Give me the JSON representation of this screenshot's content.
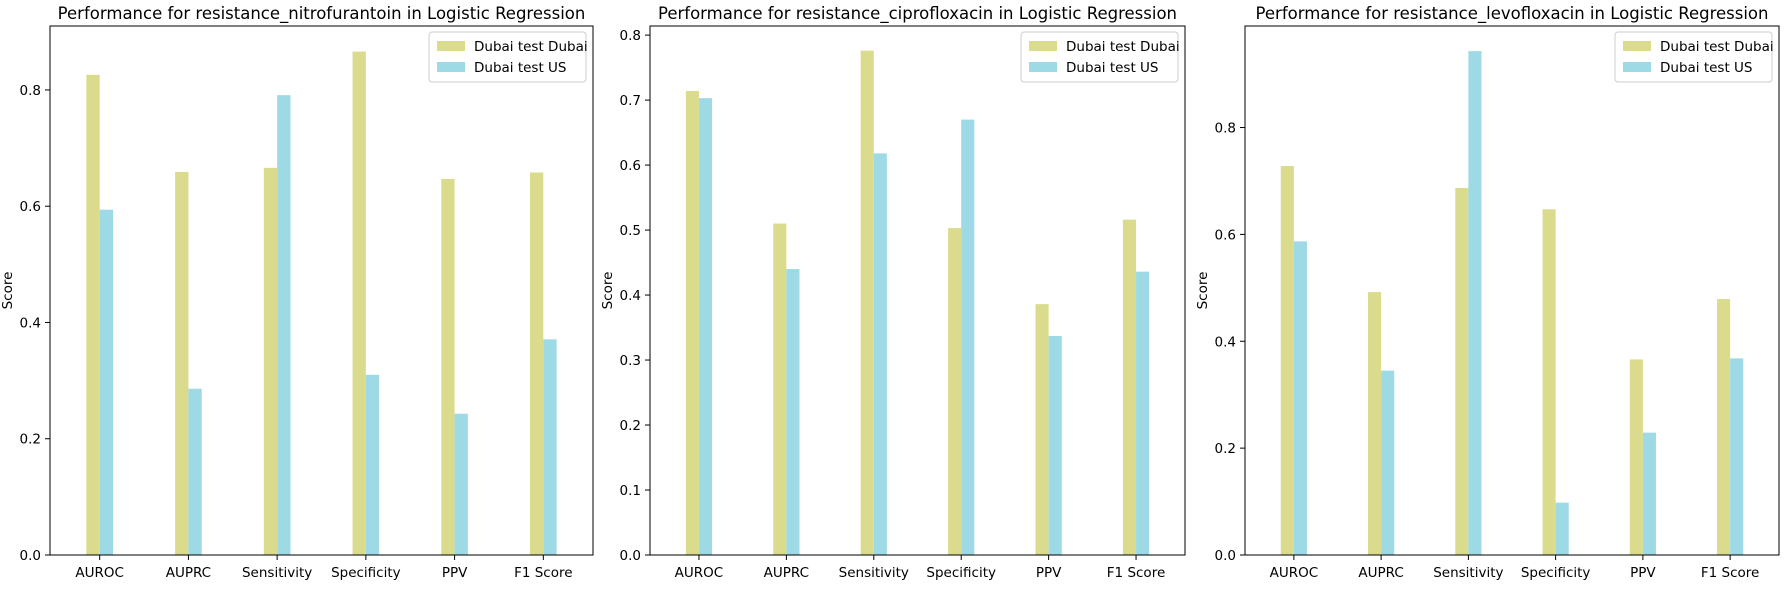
{
  "chart_data": [
    {
      "type": "bar",
      "title": "Performance for resistance_nitrofurantoin in Logistic Regression",
      "xlabel": "",
      "ylabel": "Score",
      "categories": [
        "AUROC",
        "AUPRC",
        "Sensitivity",
        "Specificity",
        "PPV",
        "F1 Score"
      ],
      "ylim": [
        0,
        0.91
      ],
      "yticks": [
        "0.0",
        "0.2",
        "0.4",
        "0.6",
        "0.8"
      ],
      "legend_position": "top-right",
      "series": [
        {
          "name": "Dubai test Dubai",
          "color": "#dbdb8d",
          "values": [
            0.826,
            0.659,
            0.666,
            0.866,
            0.647,
            0.658
          ]
        },
        {
          "name": "Dubai test US",
          "color": "#9edae5",
          "values": [
            0.594,
            0.286,
            0.791,
            0.31,
            0.243,
            0.371
          ]
        }
      ]
    },
    {
      "type": "bar",
      "title": "Performance for resistance_ciprofloxacin in Logistic Regression",
      "xlabel": "",
      "ylabel": "Score",
      "categories": [
        "AUROC",
        "AUPRC",
        "Sensitivity",
        "Specificity",
        "PPV",
        "F1 Score"
      ],
      "ylim": [
        0,
        0.814
      ],
      "yticks": [
        "0.0",
        "0.1",
        "0.2",
        "0.3",
        "0.4",
        "0.5",
        "0.6",
        "0.7",
        "0.8"
      ],
      "legend_position": "top-right",
      "series": [
        {
          "name": "Dubai test Dubai",
          "color": "#dbdb8d",
          "values": [
            0.714,
            0.51,
            0.776,
            0.503,
            0.386,
            0.516
          ]
        },
        {
          "name": "Dubai test US",
          "color": "#9edae5",
          "values": [
            0.703,
            0.44,
            0.618,
            0.67,
            0.337,
            0.436
          ]
        }
      ]
    },
    {
      "type": "bar",
      "title": "Performance for resistance_levofloxacin in Logistic Regression",
      "xlabel": "",
      "ylabel": "Score",
      "categories": [
        "AUROC",
        "AUPRC",
        "Sensitivity",
        "Specificity",
        "PPV",
        "F1 Score"
      ],
      "ylim": [
        0,
        0.99
      ],
      "yticks": [
        "0.0",
        "0.2",
        "0.4",
        "0.6",
        "0.8"
      ],
      "legend_position": "top-right",
      "series": [
        {
          "name": "Dubai test Dubai",
          "color": "#dbdb8d",
          "values": [
            0.728,
            0.492,
            0.687,
            0.647,
            0.366,
            0.479
          ]
        },
        {
          "name": "Dubai test US",
          "color": "#9edae5",
          "values": [
            0.587,
            0.345,
            0.943,
            0.098,
            0.229,
            0.368
          ]
        }
      ]
    }
  ]
}
